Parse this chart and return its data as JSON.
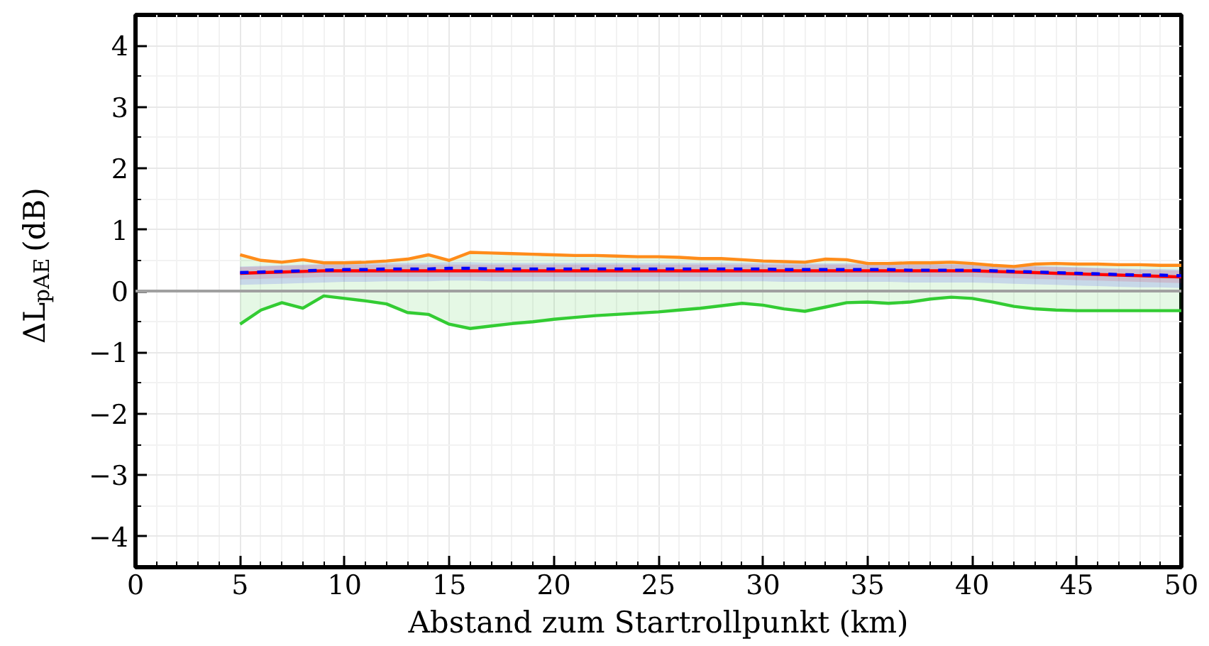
{
  "chart_data": {
    "type": "line",
    "xlabel": "Abstand zum Startrollpunkt (km)",
    "ylabel": "ΔL$_{pAE}$ (dB)",
    "x": [
      5,
      6,
      7,
      8,
      9,
      10,
      11,
      12,
      13,
      14,
      15,
      16,
      17,
      18,
      19,
      20,
      21,
      22,
      23,
      24,
      25,
      26,
      27,
      28,
      29,
      30,
      31,
      32,
      33,
      34,
      35,
      36,
      37,
      38,
      39,
      40,
      41,
      42,
      43,
      44,
      45,
      46,
      47,
      48,
      49,
      50
    ],
    "xlim": [
      0,
      50
    ],
    "xticks": [
      0,
      5,
      10,
      15,
      20,
      25,
      30,
      35,
      40,
      45,
      50
    ],
    "ylim": [
      -4.5,
      4.5
    ],
    "yticks": [
      {
        "value": -4,
        "label": "−4"
      },
      {
        "value": -3,
        "label": "−3"
      },
      {
        "value": -2,
        "label": "−2"
      },
      {
        "value": -1,
        "label": "−1"
      },
      0,
      1,
      2,
      3,
      4
    ],
    "grid": true,
    "ref_lines": [
      {
        "axis": "y",
        "value": 0,
        "color": "#a0a0a0"
      }
    ],
    "series": [
      {
        "color": "#33cc33",
        "values": [
          -0.54,
          -0.31,
          -0.19,
          -0.28,
          -0.08,
          -0.12,
          -0.16,
          -0.21,
          -0.35,
          -0.38,
          -0.54,
          -0.61,
          -0.57,
          -0.53,
          -0.5,
          -0.46,
          -0.43,
          -0.4,
          -0.38,
          -0.36,
          -0.34,
          -0.31,
          -0.28,
          -0.24,
          -0.2,
          -0.23,
          -0.29,
          -0.33,
          -0.26,
          -0.19,
          -0.18,
          -0.2,
          -0.18,
          -0.13,
          -0.1,
          -0.12,
          -0.18,
          -0.25,
          -0.29,
          -0.31,
          -0.32,
          -0.32,
          -0.32,
          -0.32,
          -0.32,
          -0.32
        ],
        "lower": [
          -0.54,
          -0.31,
          -0.19,
          -0.28,
          -0.08,
          -0.12,
          -0.16,
          -0.21,
          -0.35,
          -0.38,
          -0.54,
          -0.61,
          -0.57,
          -0.53,
          -0.5,
          -0.46,
          -0.43,
          -0.4,
          -0.38,
          -0.36,
          -0.34,
          -0.31,
          -0.28,
          -0.24,
          -0.2,
          -0.23,
          -0.29,
          -0.33,
          -0.26,
          -0.19,
          -0.18,
          -0.2,
          -0.18,
          -0.13,
          -0.1,
          -0.12,
          -0.18,
          -0.25,
          -0.29,
          -0.31,
          -0.32,
          -0.32,
          -0.32,
          -0.32,
          -0.32,
          -0.32
        ],
        "upper": [
          0.59,
          0.5,
          0.47,
          0.51,
          0.46,
          0.46,
          0.47,
          0.49,
          0.52,
          0.59,
          0.5,
          0.63,
          0.62,
          0.61,
          0.6,
          0.59,
          0.58,
          0.58,
          0.57,
          0.56,
          0.56,
          0.55,
          0.53,
          0.53,
          0.51,
          0.49,
          0.48,
          0.47,
          0.52,
          0.51,
          0.45,
          0.45,
          0.46,
          0.46,
          0.47,
          0.45,
          0.42,
          0.4,
          0.44,
          0.45,
          0.44,
          0.44,
          0.43,
          0.43,
          0.42,
          0.42
        ]
      },
      {
        "color": "#ff8c1a",
        "values": [
          0.59,
          0.5,
          0.47,
          0.51,
          0.46,
          0.46,
          0.47,
          0.49,
          0.52,
          0.59,
          0.5,
          0.63,
          0.62,
          0.61,
          0.6,
          0.59,
          0.58,
          0.58,
          0.57,
          0.56,
          0.56,
          0.55,
          0.53,
          0.53,
          0.51,
          0.49,
          0.48,
          0.47,
          0.52,
          0.51,
          0.45,
          0.45,
          0.46,
          0.46,
          0.47,
          0.45,
          0.42,
          0.4,
          0.44,
          0.45,
          0.44,
          0.44,
          0.43,
          0.43,
          0.42,
          0.42
        ]
      },
      {
        "color": "#ff0000",
        "values": [
          0.29,
          0.3,
          0.31,
          0.32,
          0.33,
          0.33,
          0.33,
          0.33,
          0.33,
          0.33,
          0.33,
          0.33,
          0.33,
          0.33,
          0.33,
          0.33,
          0.33,
          0.33,
          0.33,
          0.33,
          0.33,
          0.33,
          0.33,
          0.33,
          0.33,
          0.33,
          0.33,
          0.33,
          0.33,
          0.33,
          0.33,
          0.33,
          0.33,
          0.33,
          0.33,
          0.33,
          0.32,
          0.31,
          0.3,
          0.29,
          0.28,
          0.27,
          0.26,
          0.25,
          0.24,
          0.23
        ],
        "lower": [
          0.19,
          0.2,
          0.21,
          0.22,
          0.23,
          0.23,
          0.23,
          0.23,
          0.23,
          0.23,
          0.23,
          0.23,
          0.23,
          0.23,
          0.23,
          0.23,
          0.23,
          0.23,
          0.23,
          0.23,
          0.23,
          0.23,
          0.23,
          0.23,
          0.23,
          0.23,
          0.23,
          0.23,
          0.23,
          0.23,
          0.23,
          0.23,
          0.23,
          0.23,
          0.23,
          0.23,
          0.22,
          0.21,
          0.2,
          0.19,
          0.18,
          0.17,
          0.16,
          0.15,
          0.14,
          0.13
        ],
        "upper": [
          0.39,
          0.4,
          0.41,
          0.42,
          0.43,
          0.43,
          0.43,
          0.43,
          0.43,
          0.43,
          0.43,
          0.43,
          0.43,
          0.43,
          0.43,
          0.43,
          0.43,
          0.43,
          0.43,
          0.43,
          0.43,
          0.43,
          0.43,
          0.43,
          0.43,
          0.43,
          0.43,
          0.43,
          0.43,
          0.43,
          0.43,
          0.43,
          0.43,
          0.43,
          0.43,
          0.43,
          0.42,
          0.41,
          0.4,
          0.39,
          0.38,
          0.37,
          0.36,
          0.35,
          0.34,
          0.33
        ]
      },
      {
        "color": "#0000ff",
        "line_style": "dashed",
        "values": [
          0.3,
          0.31,
          0.32,
          0.33,
          0.34,
          0.35,
          0.35,
          0.36,
          0.36,
          0.36,
          0.37,
          0.37,
          0.36,
          0.36,
          0.36,
          0.36,
          0.36,
          0.36,
          0.36,
          0.36,
          0.36,
          0.36,
          0.36,
          0.36,
          0.36,
          0.36,
          0.35,
          0.35,
          0.35,
          0.35,
          0.35,
          0.35,
          0.34,
          0.34,
          0.34,
          0.34,
          0.33,
          0.32,
          0.31,
          0.3,
          0.29,
          0.28,
          0.27,
          0.26,
          0.26,
          0.25
        ],
        "lower": [
          0.1,
          0.11,
          0.12,
          0.13,
          0.14,
          0.15,
          0.15,
          0.16,
          0.16,
          0.16,
          0.17,
          0.17,
          0.16,
          0.16,
          0.16,
          0.16,
          0.16,
          0.16,
          0.16,
          0.16,
          0.16,
          0.16,
          0.16,
          0.16,
          0.16,
          0.16,
          0.15,
          0.15,
          0.15,
          0.15,
          0.15,
          0.15,
          0.14,
          0.14,
          0.14,
          0.14,
          0.13,
          0.12,
          0.11,
          0.1,
          0.09,
          0.08,
          0.07,
          0.06,
          0.06,
          0.05
        ],
        "upper": [
          0.4,
          0.41,
          0.42,
          0.43,
          0.44,
          0.45,
          0.45,
          0.46,
          0.46,
          0.46,
          0.47,
          0.47,
          0.46,
          0.46,
          0.46,
          0.46,
          0.46,
          0.46,
          0.46,
          0.46,
          0.46,
          0.46,
          0.46,
          0.46,
          0.46,
          0.46,
          0.45,
          0.45,
          0.45,
          0.45,
          0.45,
          0.45,
          0.44,
          0.44,
          0.44,
          0.44,
          0.43,
          0.42,
          0.41,
          0.4,
          0.39,
          0.38,
          0.37,
          0.36,
          0.36,
          0.35
        ]
      }
    ]
  }
}
